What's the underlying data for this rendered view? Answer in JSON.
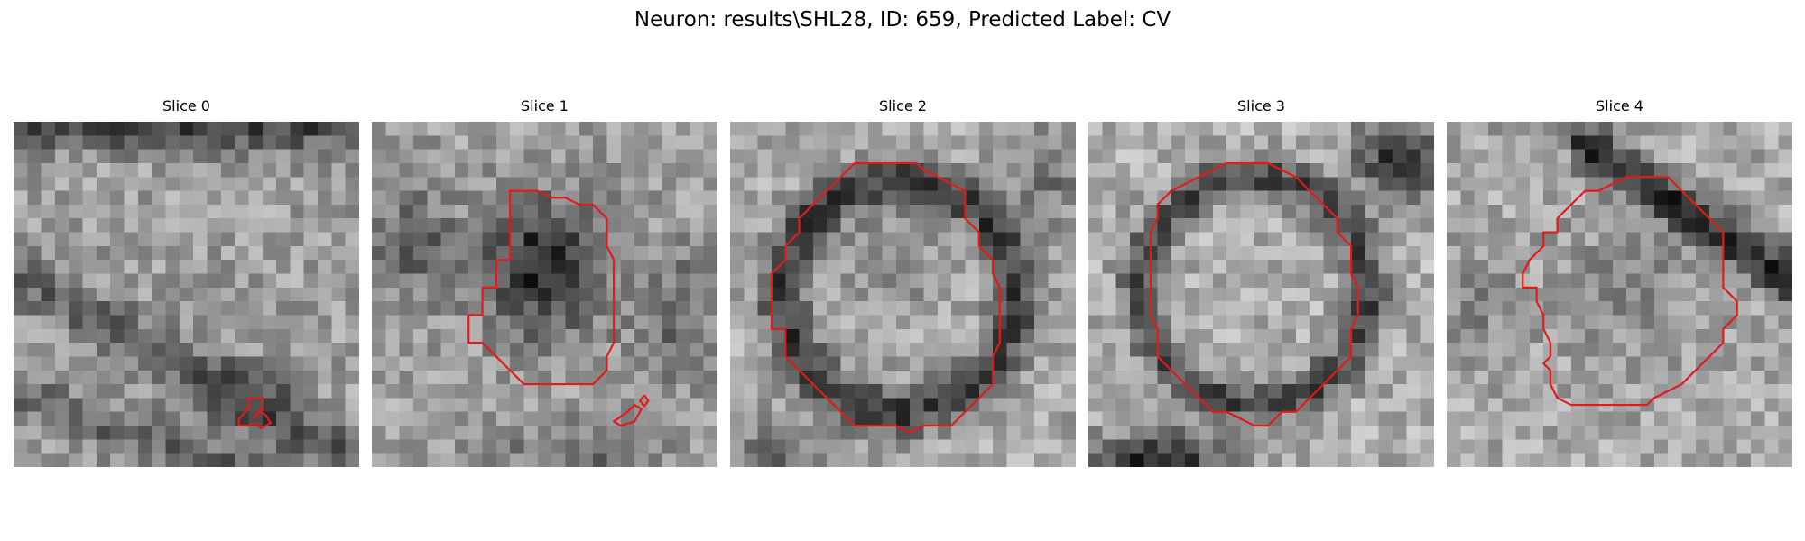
{
  "figure": {
    "title": "Neuron: results\\SHL28, ID: 659, Predicted Label: CV"
  },
  "slices": [
    {
      "title": "Slice 0",
      "contours": [
        [
          [
            17.3,
            21.5
          ],
          [
            18.0,
            20.8
          ],
          [
            18.0,
            20.0
          ],
          [
            17.0,
            20.0
          ],
          [
            17.0,
            20.8
          ],
          [
            16.3,
            21.5
          ],
          [
            16.3,
            22.0
          ],
          [
            17.0,
            22.0
          ],
          [
            17.5,
            21.8
          ],
          [
            17.9,
            22.2
          ],
          [
            18.6,
            21.8
          ],
          [
            18.2,
            21.2
          ],
          [
            17.7,
            21.0
          ],
          [
            17.3,
            21.5
          ]
        ]
      ]
    },
    {
      "title": "Slice 1",
      "contours": [
        [
          [
            10.0,
            8.0
          ],
          [
            10.0,
            10.0
          ],
          [
            9.0,
            10.0
          ],
          [
            9.0,
            12.0
          ],
          [
            8.0,
            12.0
          ],
          [
            8.0,
            14.0
          ],
          [
            7.0,
            14.0
          ],
          [
            7.0,
            16.0
          ],
          [
            8.0,
            16.0
          ],
          [
            9.0,
            17.0
          ],
          [
            10.0,
            18.0
          ],
          [
            11.0,
            19.0
          ],
          [
            13.0,
            19.0
          ],
          [
            15.0,
            19.0
          ],
          [
            16.0,
            19.0
          ],
          [
            17.0,
            18.0
          ],
          [
            17.0,
            17.0
          ],
          [
            17.5,
            16.0
          ],
          [
            17.5,
            13.0
          ],
          [
            17.5,
            10.0
          ],
          [
            17.0,
            9.0
          ],
          [
            17.0,
            7.0
          ],
          [
            16.0,
            6.0
          ],
          [
            15.0,
            6.0
          ],
          [
            14.0,
            5.5
          ],
          [
            13.0,
            5.5
          ],
          [
            12.0,
            5.0
          ],
          [
            11.0,
            5.0
          ],
          [
            10.0,
            5.0
          ],
          [
            10.0,
            6.0
          ],
          [
            10.0,
            8.0
          ]
        ],
        [
          [
            18.5,
            21.0
          ],
          [
            19.0,
            20.5
          ],
          [
            19.5,
            20.8
          ],
          [
            19.0,
            21.7
          ],
          [
            18.0,
            22.0
          ],
          [
            17.5,
            21.7
          ],
          [
            18.5,
            21.0
          ]
        ],
        [
          [
            19.7,
            19.8
          ],
          [
            20.0,
            20.2
          ],
          [
            19.7,
            20.6
          ],
          [
            19.4,
            20.2
          ],
          [
            19.7,
            19.8
          ]
        ]
      ]
    },
    {
      "title": "Slice 2",
      "contours": [
        [
          [
            9.0,
            3.0
          ],
          [
            8.0,
            4.0
          ],
          [
            7.0,
            5.0
          ],
          [
            6.0,
            6.0
          ],
          [
            5.0,
            7.0
          ],
          [
            5.0,
            8.0
          ],
          [
            4.0,
            9.0
          ],
          [
            4.0,
            10.0
          ],
          [
            3.0,
            11.0
          ],
          [
            3.0,
            13.0
          ],
          [
            3.0,
            15.0
          ],
          [
            4.0,
            15.0
          ],
          [
            4.0,
            17.0
          ],
          [
            5.0,
            18.0
          ],
          [
            6.0,
            19.0
          ],
          [
            7.0,
            20.0
          ],
          [
            8.0,
            21.0
          ],
          [
            9.0,
            22.0
          ],
          [
            10.0,
            22.0
          ],
          [
            11.0,
            22.0
          ],
          [
            12.0,
            22.0
          ],
          [
            13.0,
            22.5
          ],
          [
            14.0,
            22.0
          ],
          [
            15.0,
            22.0
          ],
          [
            16.0,
            22.0
          ],
          [
            17.0,
            21.0
          ],
          [
            18.0,
            20.0
          ],
          [
            19.0,
            19.0
          ],
          [
            19.0,
            17.0
          ],
          [
            19.5,
            16.0
          ],
          [
            19.5,
            14.0
          ],
          [
            19.5,
            12.0
          ],
          [
            19.0,
            11.0
          ],
          [
            19.0,
            10.0
          ],
          [
            18.0,
            9.0
          ],
          [
            18.0,
            8.0
          ],
          [
            17.0,
            7.0
          ],
          [
            17.0,
            5.0
          ],
          [
            16.0,
            4.5
          ],
          [
            15.0,
            4.0
          ],
          [
            14.0,
            3.5
          ],
          [
            13.5,
            3.0
          ],
          [
            12.0,
            3.0
          ],
          [
            11.0,
            3.0
          ],
          [
            10.0,
            3.0
          ],
          [
            9.0,
            3.0
          ]
        ]
      ]
    },
    {
      "title": "Slice 3",
      "contours": [
        [
          [
            10.0,
            3.0
          ],
          [
            9.0,
            3.5
          ],
          [
            8.0,
            4.0
          ],
          [
            7.0,
            4.5
          ],
          [
            6.0,
            5.0
          ],
          [
            5.0,
            6.0
          ],
          [
            5.0,
            7.0
          ],
          [
            4.5,
            8.0
          ],
          [
            4.5,
            10.0
          ],
          [
            4.5,
            12.0
          ],
          [
            4.5,
            14.0
          ],
          [
            5.0,
            15.0
          ],
          [
            5.0,
            17.0
          ],
          [
            6.0,
            18.0
          ],
          [
            7.0,
            19.0
          ],
          [
            8.0,
            20.0
          ],
          [
            9.0,
            21.0
          ],
          [
            10.0,
            21.0
          ],
          [
            11.0,
            21.5
          ],
          [
            12.0,
            22.0
          ],
          [
            13.0,
            22.0
          ],
          [
            14.0,
            21.0
          ],
          [
            15.0,
            21.0
          ],
          [
            16.0,
            20.0
          ],
          [
            17.0,
            19.0
          ],
          [
            18.0,
            18.0
          ],
          [
            19.0,
            17.0
          ],
          [
            19.0,
            15.0
          ],
          [
            19.5,
            14.0
          ],
          [
            19.5,
            12.0
          ],
          [
            19.0,
            11.0
          ],
          [
            19.0,
            9.0
          ],
          [
            18.0,
            8.0
          ],
          [
            18.0,
            7.0
          ],
          [
            17.0,
            6.0
          ],
          [
            16.0,
            5.0
          ],
          [
            15.0,
            4.0
          ],
          [
            14.0,
            3.5
          ],
          [
            13.0,
            3.0
          ],
          [
            12.0,
            3.0
          ],
          [
            11.0,
            3.0
          ],
          [
            10.0,
            3.0
          ]
        ]
      ]
    },
    {
      "title": "Slice 4",
      "contours": [
        [
          [
            13.0,
            4.0
          ],
          [
            12.0,
            4.5
          ],
          [
            11.0,
            5.0
          ],
          [
            10.0,
            5.0
          ],
          [
            9.0,
            6.0
          ],
          [
            8.0,
            7.0
          ],
          [
            8.0,
            8.0
          ],
          [
            7.0,
            8.0
          ],
          [
            7.0,
            9.0
          ],
          [
            6.0,
            10.0
          ],
          [
            5.5,
            11.0
          ],
          [
            5.5,
            12.0
          ],
          [
            6.5,
            12.0
          ],
          [
            6.5,
            13.0
          ],
          [
            7.0,
            14.0
          ],
          [
            7.0,
            15.0
          ],
          [
            7.5,
            16.0
          ],
          [
            7.5,
            17.0
          ],
          [
            7.0,
            17.5
          ],
          [
            7.5,
            18.0
          ],
          [
            7.5,
            19.0
          ],
          [
            8.0,
            20.0
          ],
          [
            9.0,
            20.5
          ],
          [
            10.0,
            20.5
          ],
          [
            11.0,
            20.5
          ],
          [
            12.0,
            20.5
          ],
          [
            13.0,
            20.5
          ],
          [
            14.5,
            20.5
          ],
          [
            15.0,
            20.0
          ],
          [
            16.0,
            19.5
          ],
          [
            17.0,
            19.0
          ],
          [
            18.0,
            18.0
          ],
          [
            19.0,
            17.0
          ],
          [
            20.0,
            16.0
          ],
          [
            20.0,
            15.0
          ],
          [
            21.0,
            14.0
          ],
          [
            21.0,
            13.0
          ],
          [
            20.0,
            12.0
          ],
          [
            20.0,
            10.0
          ],
          [
            20.0,
            8.0
          ],
          [
            19.0,
            7.0
          ],
          [
            18.0,
            6.0
          ],
          [
            17.0,
            5.0
          ],
          [
            16.0,
            4.0
          ],
          [
            15.0,
            4.0
          ],
          [
            14.0,
            4.0
          ],
          [
            13.0,
            4.0
          ]
        ]
      ]
    }
  ]
}
